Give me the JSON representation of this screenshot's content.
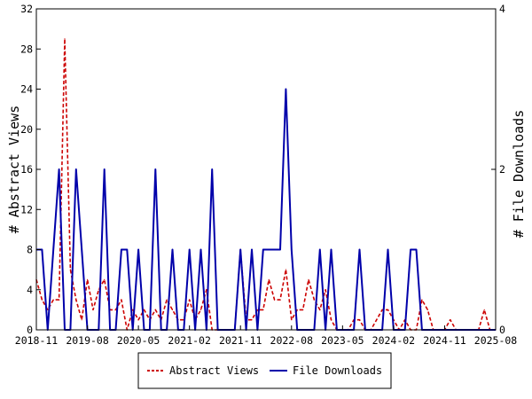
{
  "chart_data": {
    "type": "line",
    "x_ticks": [
      "2018-11",
      "2019-08",
      "2020-05",
      "2021-02",
      "2021-11",
      "2022-08",
      "2023-05",
      "2024-02",
      "2024-11",
      "2025-08"
    ],
    "x_range": [
      "2018-11",
      "2025-08"
    ],
    "y_left": {
      "label": "# Abstract Views",
      "range": [
        0,
        32
      ],
      "ticks": [
        0,
        4,
        8,
        12,
        16,
        20,
        24,
        28,
        32
      ]
    },
    "y_right": {
      "label": "# File Downloads",
      "range": [
        0,
        4
      ],
      "ticks": [
        0,
        2,
        4
      ]
    },
    "grid": false,
    "legend_position": "bottom",
    "x_months": [
      "2018-11",
      "2018-12",
      "2019-01",
      "2019-02",
      "2019-03",
      "2019-04",
      "2019-05",
      "2019-06",
      "2019-07",
      "2019-08",
      "2019-09",
      "2019-10",
      "2019-11",
      "2019-12",
      "2020-01",
      "2020-02",
      "2020-03",
      "2020-04",
      "2020-05",
      "2020-06",
      "2020-07",
      "2020-08",
      "2020-09",
      "2020-10",
      "2020-11",
      "2020-12",
      "2021-01",
      "2021-02",
      "2021-03",
      "2021-04",
      "2021-05",
      "2021-06",
      "2021-07",
      "2021-08",
      "2021-09",
      "2021-10",
      "2021-11",
      "2021-12",
      "2022-01",
      "2022-02",
      "2022-03",
      "2022-04",
      "2022-05",
      "2022-06",
      "2022-07",
      "2022-08",
      "2022-09",
      "2022-10",
      "2022-11",
      "2022-12",
      "2023-01",
      "2023-02",
      "2023-03",
      "2023-04",
      "2023-05",
      "2023-06",
      "2023-07",
      "2023-08",
      "2023-09",
      "2023-10",
      "2023-11",
      "2023-12",
      "2024-01",
      "2024-02",
      "2024-03",
      "2024-04",
      "2024-05",
      "2024-06",
      "2024-07",
      "2024-08",
      "2024-09",
      "2024-10",
      "2024-11",
      "2024-12",
      "2025-01",
      "2025-02",
      "2025-03",
      "2025-04",
      "2025-05",
      "2025-06",
      "2025-07",
      "2025-08"
    ],
    "series": [
      {
        "name": "Abstract Views",
        "axis": "left",
        "color": "#cc0000",
        "dash": "dashed",
        "values": [
          5,
          3,
          2,
          3,
          3,
          29,
          6,
          3,
          1,
          5,
          2,
          4,
          5,
          2,
          2,
          3,
          0,
          2,
          1,
          2,
          1,
          2,
          1,
          3,
          2,
          1,
          1,
          3,
          1,
          2,
          4,
          0,
          0,
          0,
          0,
          0,
          8,
          1,
          1,
          2,
          2,
          5,
          3,
          3,
          6,
          1,
          2,
          2,
          5,
          3,
          2,
          4,
          1,
          0,
          0,
          0,
          1,
          1,
          0,
          0,
          1,
          2,
          2,
          1,
          0,
          1,
          0,
          0,
          3,
          2,
          0,
          0,
          0,
          1,
          0,
          0,
          0,
          0,
          0,
          2,
          0,
          0
        ]
      },
      {
        "name": "File Downloads",
        "axis": "right",
        "color": "#0000aa",
        "dash": "solid",
        "values": [
          1,
          1,
          0,
          1,
          2,
          0,
          0,
          2,
          1,
          0,
          0,
          0,
          2,
          0,
          0,
          1,
          1,
          0,
          1,
          0,
          0,
          2,
          0,
          0,
          1,
          0,
          0,
          1,
          0,
          1,
          0,
          2,
          0,
          0,
          0,
          0,
          1,
          0,
          1,
          0,
          1,
          1,
          1,
          1,
          3,
          1,
          0,
          0,
          0,
          0,
          1,
          0,
          1,
          0,
          0,
          0,
          0,
          1,
          0,
          0,
          0,
          0,
          1,
          0,
          0,
          0,
          1,
          1,
          0,
          0,
          0,
          0,
          0,
          0,
          0,
          0,
          0,
          0,
          0,
          0,
          0,
          0
        ]
      }
    ]
  }
}
